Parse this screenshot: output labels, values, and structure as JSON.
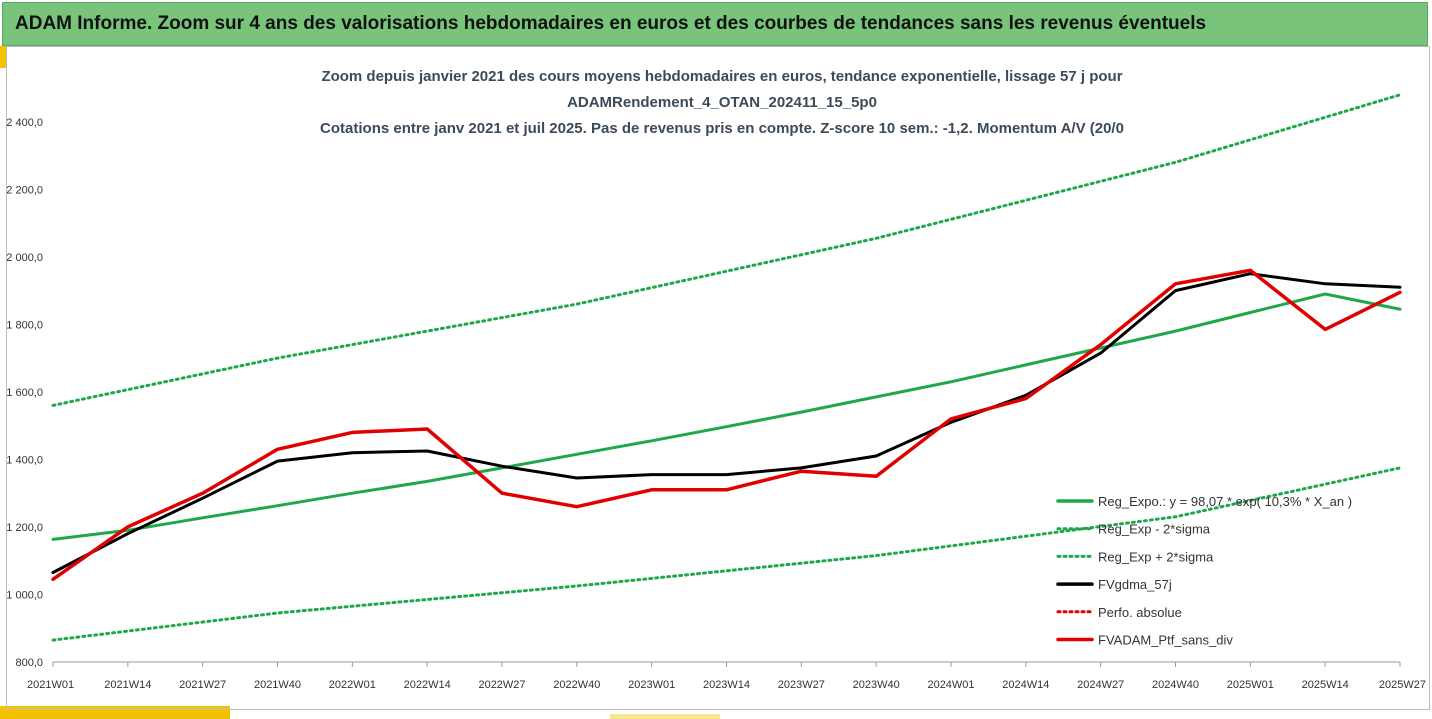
{
  "banner": {
    "title": "ADAM Informe. Zoom sur 4 ans des valorisations hebdomadaires en euros et des courbes de tendances sans les revenus éventuels",
    "color": "#77c47a"
  },
  "chart_data": {
    "type": "line",
    "title_lines": [
      "Zoom depuis janvier 2021 des cours moyens hebdomadaires  en euros, tendance exponentielle, lissage 57 j pour",
      "ADAMRendement_4_OTAN_202411_15_5p0",
      "Cotations entre janv 2021 et juil 2025. Pas de revenus pris en compte. Z-score 10 sem.: -1,2. Momentum A/V (20/0"
    ],
    "xlabel": "",
    "ylabel": "",
    "ylim": [
      800,
      2500
    ],
    "grid": false,
    "legend_position": "bottom-right",
    "y_ticks": [
      {
        "value": 800,
        "label": "800,0"
      },
      {
        "value": 1000,
        "label": "1 000,0"
      },
      {
        "value": 1200,
        "label": "1 200,0"
      },
      {
        "value": 1400,
        "label": "1 400,0"
      },
      {
        "value": 1600,
        "label": "1 600,0"
      },
      {
        "value": 1800,
        "label": "1 800,0"
      },
      {
        "value": 2000,
        "label": "2 000,0"
      },
      {
        "value": 2200,
        "label": "2 200,0"
      },
      {
        "value": 2400,
        "label": "2 400,0"
      }
    ],
    "x_ticks": [
      "2021W01",
      "2021W14",
      "2021W27",
      "2021W40",
      "2022W01",
      "2022W14",
      "2022W27",
      "2022W40",
      "2023W01",
      "2023W14",
      "2023W27",
      "2023W40",
      "2024W01",
      "2024W14",
      "2024W27",
      "2024W40",
      "2025W01",
      "2025W14",
      "2025W27"
    ],
    "series": [
      {
        "name": "Reg_Expo.: y = 98,07 * exp( 10,3% *  X_an )",
        "color": "#1fa84a",
        "style": "solid",
        "points": [
          [
            "2021W01",
            1163
          ],
          [
            "2021W14",
            1190
          ],
          [
            "2021W27",
            1227
          ],
          [
            "2021W40",
            1263
          ],
          [
            "2022W01",
            1300
          ],
          [
            "2022W14",
            1335
          ],
          [
            "2022W27",
            1375
          ],
          [
            "2022W40",
            1415
          ],
          [
            "2023W01",
            1455
          ],
          [
            "2023W14",
            1497
          ],
          [
            "2023W27",
            1540
          ],
          [
            "2023W40",
            1585
          ],
          [
            "2024W01",
            1630
          ],
          [
            "2024W14",
            1680
          ],
          [
            "2024W27",
            1730
          ],
          [
            "2024W40",
            1780
          ],
          [
            "2025W01",
            1835
          ],
          [
            "2025W14",
            1890
          ],
          [
            "2025W27",
            1845
          ]
        ]
      },
      {
        "name": "Reg_Exp - 2*sigma",
        "color": "#1fa84a",
        "style": "dotted",
        "points": [
          [
            "2021W01",
            865
          ],
          [
            "2021W40",
            945
          ],
          [
            "2022W40",
            1025
          ],
          [
            "2023W40",
            1115
          ],
          [
            "2024W40",
            1230
          ],
          [
            "2025W27",
            1375
          ]
        ]
      },
      {
        "name": "Reg_Exp + 2*sigma",
        "color": "#1fa84a",
        "style": "dotted",
        "points": [
          [
            "2021W01",
            1560
          ],
          [
            "2021W40",
            1700
          ],
          [
            "2022W40",
            1860
          ],
          [
            "2023W40",
            2055
          ],
          [
            "2024W40",
            2280
          ],
          [
            "2025W27",
            2480
          ]
        ]
      },
      {
        "name": "FVgdma_57j",
        "color": "#000000",
        "style": "solid",
        "points": [
          [
            "2021W01",
            1065
          ],
          [
            "2021W14",
            1180
          ],
          [
            "2021W27",
            1285
          ],
          [
            "2021W40",
            1395
          ],
          [
            "2022W01",
            1420
          ],
          [
            "2022W14",
            1425
          ],
          [
            "2022W27",
            1380
          ],
          [
            "2022W40",
            1345
          ],
          [
            "2023W01",
            1355
          ],
          [
            "2023W14",
            1355
          ],
          [
            "2023W27",
            1375
          ],
          [
            "2023W40",
            1410
          ],
          [
            "2024W01",
            1510
          ],
          [
            "2024W14",
            1590
          ],
          [
            "2024W27",
            1715
          ],
          [
            "2024W40",
            1900
          ],
          [
            "2025W01",
            1950
          ],
          [
            "2025W14",
            1920
          ],
          [
            "2025W27",
            1910
          ]
        ]
      },
      {
        "name": "Perfo. absolue",
        "color": "#e00000",
        "style": "dotted",
        "points": []
      },
      {
        "name": "FVADAM_Ptf_sans_div",
        "color": "#e00000",
        "style": "solid",
        "points": [
          [
            "2021W01",
            1045
          ],
          [
            "2021W14",
            1200
          ],
          [
            "2021W27",
            1300
          ],
          [
            "2021W40",
            1430
          ],
          [
            "2022W01",
            1480
          ],
          [
            "2022W14",
            1490
          ],
          [
            "2022W27",
            1300
          ],
          [
            "2022W40",
            1260
          ],
          [
            "2023W01",
            1310
          ],
          [
            "2023W14",
            1310
          ],
          [
            "2023W27",
            1365
          ],
          [
            "2023W40",
            1350
          ],
          [
            "2024W01",
            1520
          ],
          [
            "2024W14",
            1580
          ],
          [
            "2024W27",
            1740
          ],
          [
            "2024W40",
            1920
          ],
          [
            "2025W01",
            1960
          ],
          [
            "2025W14",
            1785
          ],
          [
            "2025W27",
            1895
          ]
        ]
      }
    ]
  }
}
